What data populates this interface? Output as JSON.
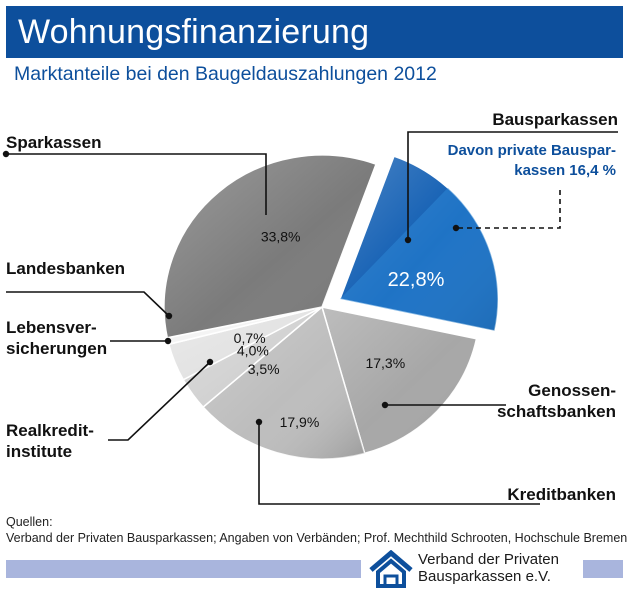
{
  "header": {
    "title": "Wohnungsfinanzierung",
    "subtitle": "Marktanteile bei den Baugeldauszahlungen 2012",
    "title_bar_color": "#0d4f9c"
  },
  "chart_data": {
    "type": "pie",
    "title": "Wohnungsfinanzierung",
    "subtitle": "Marktanteile bei den Baugeldauszahlungen 2012",
    "unit": "%",
    "slices": [
      {
        "label_lines": [
          "Bausparkassen"
        ],
        "value": 22.8,
        "value_label": "22,8%",
        "color": "#0e5cb2",
        "exploded": true,
        "sub": {
          "label_lines": [
            "Davon private Bauspar-",
            "kassen 16,4 %"
          ],
          "value": 16.4
        }
      },
      {
        "label_lines": [
          "Genossen-",
          "schaftsbanken"
        ],
        "value": 17.3,
        "value_label": "17,3%",
        "color": "#a7a7a7"
      },
      {
        "label_lines": [
          "Kreditbanken"
        ],
        "value": 17.9,
        "value_label": "17,9%",
        "color": "#bdbdbd"
      },
      {
        "label_lines": [
          "Realkredit-",
          "institute"
        ],
        "value": 3.5,
        "value_label": "3,5%",
        "color": "#d2d2d2"
      },
      {
        "label_lines": [
          "Lebensver-",
          "sicherungen"
        ],
        "value": 4.0,
        "value_label": "4,0%",
        "color": "#e3e3e3"
      },
      {
        "label_lines": [
          "Landesbanken"
        ],
        "value": 0.7,
        "value_label": "0,7%",
        "color": "#f4f4f4"
      },
      {
        "label_lines": [
          "Sparkassen"
        ],
        "value": 33.8,
        "value_label": "33,8%",
        "color": "#7b7b7b"
      }
    ],
    "legend": "none",
    "labels_placement": "outside with leader lines"
  },
  "footer": {
    "sources_heading": "Quellen:",
    "sources_text": "Verband der Privaten Bausparkassen; Angaben von Verbänden; Prof. Mechthild Schrooten, Hochschule Bremen",
    "logo_line1": "Verband der Privaten",
    "logo_line2": "Bausparkassen e.V.",
    "logo_icon": "house-logo-icon",
    "strip_color": "#a9b5dd"
  }
}
